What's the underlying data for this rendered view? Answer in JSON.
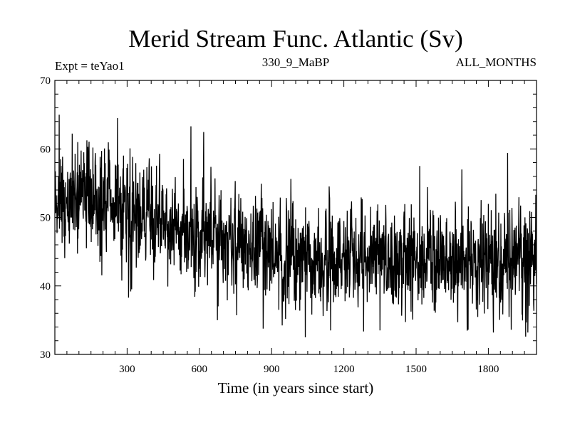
{
  "chart_data": {
    "type": "line",
    "title": "Merid Stream Func. Atlantic (Sv)",
    "subtitle_left": "Expt = teYao1",
    "subtitle_center": "330_9_MaBP",
    "subtitle_right": "ALL_MONTHS",
    "xlabel": "Time (in years since start)",
    "ylabel": "",
    "xlim": [
      0,
      2000
    ],
    "ylim": [
      30,
      70
    ],
    "x_ticks": [
      300,
      600,
      900,
      1200,
      1500,
      1800
    ],
    "y_ticks": [
      30,
      40,
      50,
      60,
      70
    ],
    "x_tick_labels": [
      "300",
      "600",
      "900",
      "1200",
      "1500",
      "1800"
    ],
    "y_tick_labels": [
      "30",
      "40",
      "50",
      "60",
      "70"
    ],
    "grid": false,
    "legend": "none",
    "series": [
      {
        "x_start": 1,
        "x_end": 2000,
        "trend_x": [
          0,
          100,
          200,
          300,
          400,
          500,
          600,
          700,
          800,
          900,
          1000,
          1100,
          1200,
          1300,
          1400,
          1500,
          1600,
          1700,
          1800,
          1900,
          2000
        ],
        "trend_y": [
          52.5,
          53.0,
          52.5,
          51.0,
          49.5,
          49.0,
          48.0,
          47.0,
          46.0,
          45.0,
          44.0,
          43.5,
          43.5,
          43.5,
          43.5,
          44.0,
          44.0,
          44.0,
          44.0,
          43.5,
          43.5
        ],
        "noise_sd": 3.8,
        "peaks": [
          [
            18,
            65.0
          ],
          [
            24,
            58.5
          ],
          [
            95,
            61.0
          ],
          [
            120,
            59.5
          ],
          [
            260,
            64.5
          ],
          [
            565,
            63.3
          ],
          [
            1880,
            59.4
          ],
          [
            1690,
            57.0
          ],
          [
            1515,
            57.5
          ]
        ],
        "troughs": [
          [
            315,
            39.2
          ],
          [
            675,
            35.0
          ],
          [
            1040,
            32.5
          ],
          [
            1145,
            33.5
          ],
          [
            1350,
            33.5
          ],
          [
            1895,
            33.6
          ],
          [
            1955,
            32.6
          ]
        ],
        "color": "#000000"
      }
    ]
  }
}
